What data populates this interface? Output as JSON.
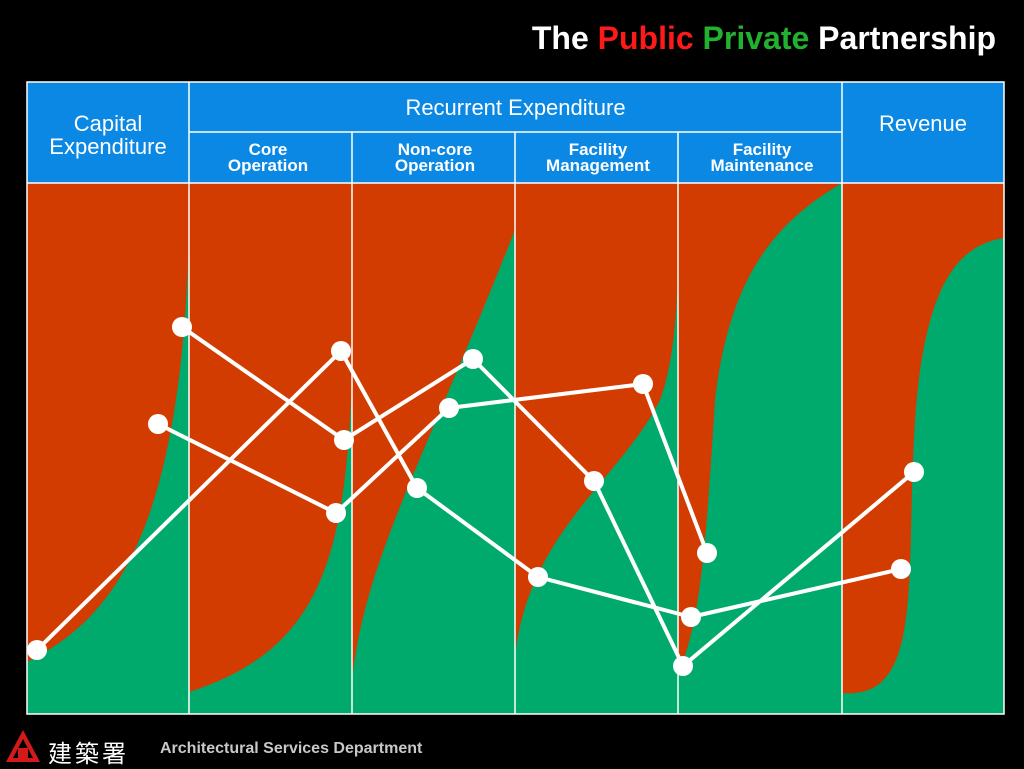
{
  "title": {
    "word1": "The",
    "word2": "Public",
    "word3": "Private",
    "word4": "Partnership",
    "color_public": "#ff1a1a",
    "color_private": "#22b030",
    "color_default": "#ffffff"
  },
  "headers": {
    "capital": "Capital Expenditure",
    "recurrent": "Recurrent Expenditure",
    "revenue": "Revenue",
    "core": "Core Operation",
    "noncore": "Non-core Operation",
    "facility_mgmt": "Facility Management",
    "facility_maint": "Facility Maintenance"
  },
  "colors": {
    "header_bg": "#0a88e4",
    "public_area": "#d23c00",
    "private_area": "#00aa6c",
    "grid_line": "#ffffff",
    "line": "#ffffff"
  },
  "footer": {
    "chinese_name": "建築署",
    "department": "Architectural Services Department",
    "logo": "asd-logo-icon"
  }
}
